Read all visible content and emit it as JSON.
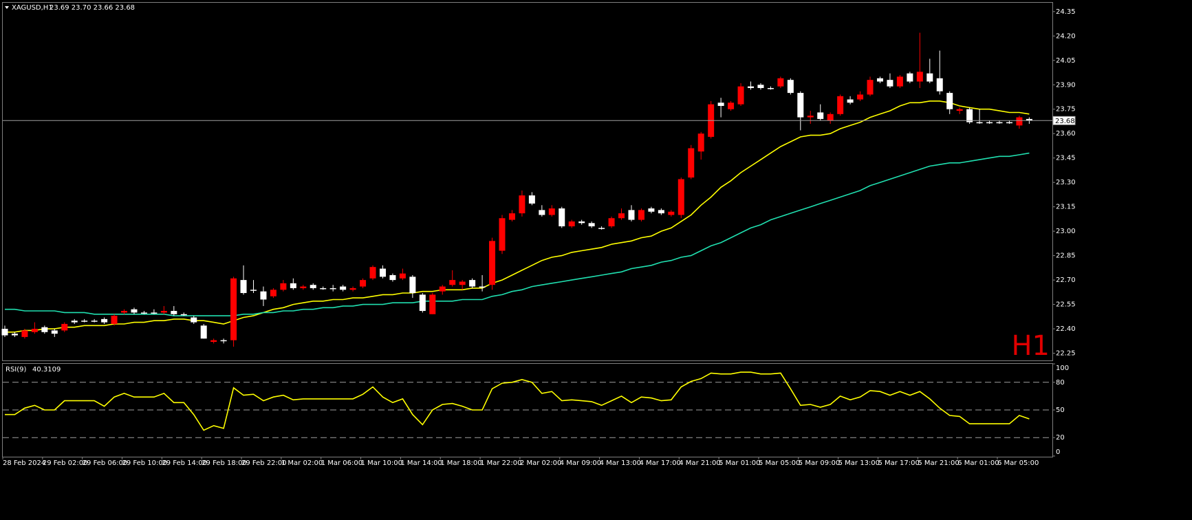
{
  "chart_data": [
    {
      "type": "candlestick",
      "title": "XAGUSD,H1",
      "subtitle": "23.69 23.70 23.66 23.68",
      "timeframe_label": "H1",
      "categories": [
        "28 Feb 2024",
        null,
        null,
        null,
        "29 Feb 02:00",
        null,
        null,
        null,
        "29 Feb 06:00",
        null,
        null,
        null,
        "29 Feb 10:00",
        null,
        null,
        null,
        "29 Feb 14:00",
        null,
        null,
        null,
        "29 Feb 18:00",
        null,
        null,
        null,
        "29 Feb 22:00",
        null,
        null,
        null,
        "1 Mar 02:00",
        null,
        null,
        null,
        "1 Mar 06:00",
        null,
        null,
        null,
        "1 Mar 10:00",
        null,
        null,
        null,
        "1 Mar 14:00",
        null,
        null,
        null,
        "1 Mar 18:00",
        null,
        null,
        null,
        "1 Mar 22:00",
        null,
        null,
        null,
        "2 Mar 02:00",
        null,
        null,
        null,
        "4 Mar 09:00",
        null,
        null,
        null,
        "4 Mar 13:00",
        null,
        null,
        null,
        "4 Mar 17:00",
        null,
        null,
        null,
        "4 Mar 21:00",
        null,
        null,
        null,
        "5 Mar 01:00",
        null,
        null,
        null,
        "5 Mar 05:00",
        null,
        null,
        null,
        "5 Mar 09:00",
        null,
        null,
        null,
        "5 Mar 13:00",
        null,
        null,
        null,
        "5 Mar 17:00",
        null,
        null,
        null,
        "5 Mar 21:00",
        null,
        null,
        null,
        "6 Mar 01:00",
        null,
        null,
        null,
        "6 Mar 05:00",
        null,
        null,
        null
      ],
      "open": [
        22.4,
        22.37,
        22.35,
        22.38,
        22.41,
        22.39,
        22.39,
        22.45,
        22.45,
        22.45,
        22.46,
        22.43,
        22.5,
        22.52,
        22.5,
        22.5,
        22.5,
        22.51,
        22.49,
        22.47,
        22.42,
        22.32,
        22.33,
        22.33,
        22.7,
        22.64,
        22.63,
        22.6,
        22.64,
        22.68,
        22.65,
        22.67,
        22.65,
        22.65,
        22.66,
        22.64,
        22.66,
        22.71,
        22.77,
        22.73,
        22.71,
        22.72,
        22.61,
        22.49,
        22.63,
        22.67,
        22.67,
        22.7,
        22.66,
        22.67,
        22.88,
        23.07,
        23.11,
        23.22,
        23.13,
        23.1,
        23.14,
        23.03,
        23.06,
        23.05,
        23.02,
        23.03,
        23.08,
        23.13,
        23.07,
        23.14,
        23.13,
        23.1,
        23.1,
        23.33,
        23.49,
        23.58,
        23.79,
        23.75,
        23.78,
        23.89,
        23.9,
        23.88,
        23.89,
        23.93,
        23.85,
        23.7,
        23.73,
        23.68,
        23.72,
        23.81,
        23.81,
        23.84,
        23.94,
        23.93,
        23.89,
        23.97,
        23.92,
        23.97,
        23.94,
        23.85,
        23.74,
        23.75,
        23.67,
        23.67,
        23.67,
        23.67,
        23.65,
        23.69
      ],
      "high": [
        22.42,
        22.38,
        22.4,
        22.44,
        22.42,
        22.4,
        22.44,
        22.46,
        22.46,
        22.46,
        22.47,
        22.49,
        22.52,
        22.53,
        22.51,
        22.52,
        22.54,
        22.54,
        22.5,
        22.48,
        22.43,
        22.34,
        22.34,
        22.72,
        22.79,
        22.7,
        22.66,
        22.65,
        22.7,
        22.71,
        22.67,
        22.68,
        22.66,
        22.67,
        22.67,
        22.66,
        22.71,
        22.79,
        22.79,
        22.74,
        22.77,
        22.73,
        22.62,
        22.62,
        22.67,
        22.76,
        22.7,
        22.71,
        22.73,
        22.96,
        23.1,
        23.13,
        23.25,
        23.24,
        23.16,
        23.16,
        23.15,
        23.07,
        23.07,
        23.06,
        23.03,
        23.09,
        23.14,
        23.16,
        23.14,
        23.15,
        23.14,
        23.13,
        23.33,
        23.53,
        23.61,
        23.8,
        23.82,
        23.8,
        23.91,
        23.92,
        23.91,
        23.89,
        23.95,
        23.94,
        23.86,
        23.74,
        23.78,
        23.73,
        23.84,
        23.83,
        23.86,
        23.95,
        23.95,
        23.97,
        23.96,
        23.98,
        24.22,
        24.06,
        24.11,
        23.86,
        23.76,
        23.76,
        23.75,
        23.68,
        23.68,
        23.68,
        23.71,
        23.7
      ],
      "low": [
        22.35,
        22.35,
        22.34,
        22.37,
        22.37,
        22.35,
        22.38,
        22.43,
        22.44,
        22.44,
        22.43,
        22.42,
        22.49,
        22.49,
        22.49,
        22.49,
        22.49,
        22.48,
        22.48,
        22.43,
        22.34,
        22.31,
        22.31,
        22.29,
        22.61,
        22.62,
        22.54,
        22.59,
        22.63,
        22.64,
        22.64,
        22.64,
        22.64,
        22.63,
        22.63,
        22.63,
        22.65,
        22.7,
        22.71,
        22.69,
        22.7,
        22.59,
        22.5,
        22.49,
        22.61,
        22.66,
        22.64,
        22.65,
        22.63,
        22.64,
        22.86,
        23.06,
        23.09,
        23.16,
        23.09,
        23.09,
        23.02,
        23.02,
        23.04,
        23.02,
        23.01,
        23.02,
        23.07,
        23.06,
        23.06,
        23.11,
        23.1,
        23.09,
        23.08,
        23.32,
        23.44,
        23.57,
        23.7,
        23.74,
        23.77,
        23.87,
        23.87,
        23.87,
        23.88,
        23.84,
        23.62,
        23.66,
        23.68,
        23.66,
        23.71,
        23.78,
        23.8,
        23.83,
        23.91,
        23.88,
        23.88,
        23.91,
        23.88,
        23.91,
        23.84,
        23.72,
        23.72,
        23.66,
        23.66,
        23.66,
        23.66,
        23.66,
        23.63,
        23.66
      ],
      "close": [
        22.36,
        22.36,
        22.39,
        22.4,
        22.38,
        22.37,
        22.43,
        22.44,
        22.45,
        22.45,
        22.44,
        22.48,
        22.51,
        22.5,
        22.5,
        22.5,
        22.51,
        22.49,
        22.49,
        22.44,
        22.34,
        22.33,
        22.33,
        22.71,
        22.62,
        22.64,
        22.58,
        22.64,
        22.68,
        22.65,
        22.66,
        22.65,
        22.65,
        22.65,
        22.64,
        22.65,
        22.7,
        22.78,
        22.72,
        22.7,
        22.74,
        22.62,
        22.51,
        22.61,
        22.66,
        22.7,
        22.69,
        22.66,
        22.66,
        22.94,
        23.08,
        23.11,
        23.22,
        23.17,
        23.1,
        23.14,
        23.03,
        23.06,
        23.05,
        23.03,
        23.02,
        23.08,
        23.11,
        23.07,
        23.13,
        23.12,
        23.11,
        23.12,
        23.32,
        23.51,
        23.6,
        23.78,
        23.77,
        23.79,
        23.89,
        23.88,
        23.88,
        23.88,
        23.94,
        23.85,
        23.7,
        23.71,
        23.69,
        23.72,
        23.83,
        23.79,
        23.84,
        23.93,
        23.92,
        23.89,
        23.95,
        23.92,
        23.98,
        23.92,
        23.86,
        23.75,
        23.75,
        23.67,
        23.67,
        23.67,
        23.67,
        23.67,
        23.7,
        23.68
      ],
      "up_color": "#ff0000",
      "down_color": "#ffffff",
      "flat_color": "#ffffff",
      "overlays": [
        {
          "color": "#ffff00",
          "values": [
            22.38,
            22.38,
            22.39,
            22.39,
            22.4,
            22.4,
            22.41,
            22.41,
            22.42,
            22.42,
            22.42,
            22.43,
            22.43,
            22.44,
            22.44,
            22.45,
            22.45,
            22.46,
            22.46,
            22.45,
            22.45,
            22.44,
            22.43,
            22.45,
            22.47,
            22.48,
            22.5,
            22.52,
            22.53,
            22.55,
            22.56,
            22.57,
            22.57,
            22.58,
            22.58,
            22.59,
            22.59,
            22.6,
            22.61,
            22.61,
            22.62,
            22.62,
            22.63,
            22.63,
            22.64,
            22.64,
            22.64,
            22.65,
            22.65,
            22.68,
            22.7,
            22.73,
            22.76,
            22.79,
            22.82,
            22.84,
            22.85,
            22.87,
            22.88,
            22.89,
            22.9,
            22.92,
            22.93,
            22.94,
            22.96,
            22.97,
            23.0,
            23.02,
            23.06,
            23.1,
            23.16,
            23.21,
            23.27,
            23.31,
            23.36,
            23.4,
            23.44,
            23.48,
            23.52,
            23.55,
            23.58,
            23.59,
            23.59,
            23.6,
            23.63,
            23.65,
            23.67,
            23.7,
            23.72,
            23.74,
            23.77,
            23.79,
            23.79,
            23.8,
            23.8,
            23.79,
            23.77,
            23.76,
            23.75,
            23.75,
            23.74,
            23.73,
            23.73,
            23.72
          ]
        },
        {
          "color": "#20e0b0",
          "values": [
            22.52,
            22.52,
            22.51,
            22.51,
            22.51,
            22.51,
            22.5,
            22.5,
            22.5,
            22.49,
            22.49,
            22.49,
            22.49,
            22.49,
            22.49,
            22.49,
            22.49,
            22.48,
            22.48,
            22.48,
            22.48,
            22.48,
            22.48,
            22.48,
            22.49,
            22.49,
            22.5,
            22.5,
            22.51,
            22.51,
            22.52,
            22.52,
            22.53,
            22.53,
            22.54,
            22.54,
            22.55,
            22.55,
            22.55,
            22.56,
            22.56,
            22.56,
            22.57,
            22.57,
            22.57,
            22.57,
            22.58,
            22.58,
            22.58,
            22.6,
            22.61,
            22.63,
            22.64,
            22.66,
            22.67,
            22.68,
            22.69,
            22.7,
            22.71,
            22.72,
            22.73,
            22.74,
            22.75,
            22.77,
            22.78,
            22.79,
            22.81,
            22.82,
            22.84,
            22.85,
            22.88,
            22.91,
            22.93,
            22.96,
            22.99,
            23.02,
            23.04,
            23.07,
            23.09,
            23.11,
            23.13,
            23.15,
            23.17,
            23.19,
            23.21,
            23.23,
            23.25,
            23.28,
            23.3,
            23.32,
            23.34,
            23.36,
            23.38,
            23.4,
            23.41,
            23.42,
            23.42,
            23.43,
            23.44,
            23.45,
            23.46,
            23.46,
            23.47,
            23.48
          ]
        }
      ],
      "price_line_color": "#a0a0a0",
      "ylim": [
        22.21,
        24.4
      ],
      "yticks": [
        {
          "value": 24.35,
          "label": "24.35"
        },
        {
          "value": 24.2,
          "label": "24.20"
        },
        {
          "value": 24.05,
          "label": "24.05"
        },
        {
          "value": 23.9,
          "label": "23.90"
        },
        {
          "value": 23.75,
          "label": "23.75"
        },
        {
          "value": 23.6,
          "label": "23.60"
        },
        {
          "value": 23.45,
          "label": "23.45"
        },
        {
          "value": 23.3,
          "label": "23.30"
        },
        {
          "value": 23.15,
          "label": "23.15"
        },
        {
          "value": 23,
          "label": "23.00"
        },
        {
          "value": 22.85,
          "label": "22.85"
        },
        {
          "value": 22.7,
          "label": "22.70"
        },
        {
          "value": 22.55,
          "label": "22.55"
        },
        {
          "value": 22.4,
          "label": "22.40"
        },
        {
          "value": 22.25,
          "label": "22.25"
        }
      ],
      "grid": false
    },
    {
      "type": "line",
      "title": "RSI(9)",
      "color": "#ffff00",
      "values": [
        45,
        45,
        52,
        55,
        50,
        50,
        60,
        60,
        60,
        60,
        54,
        64,
        68,
        64,
        64,
        64,
        68,
        58,
        58,
        45,
        28,
        33,
        30,
        74,
        66,
        67,
        60,
        64,
        66,
        61,
        62,
        62,
        62,
        62,
        62,
        62,
        67,
        75,
        64,
        58,
        62,
        45,
        34,
        50,
        56,
        57,
        54,
        50,
        50,
        73,
        79,
        80,
        83,
        80,
        68,
        70,
        60,
        61,
        60,
        59,
        55,
        60,
        65,
        58,
        64,
        63,
        60,
        61,
        75,
        81,
        84,
        90,
        89,
        89,
        91,
        91,
        89,
        89,
        90,
        73,
        55,
        56,
        53,
        56,
        65,
        61,
        64,
        71,
        70,
        66,
        70,
        66,
        70,
        62,
        52,
        44,
        43,
        35,
        35,
        35,
        35,
        35,
        44,
        40.3109
      ],
      "ylim": [
        0,
        100
      ],
      "yticks": [
        100,
        80,
        50,
        20,
        0
      ],
      "grid": true
    }
  ]
}
